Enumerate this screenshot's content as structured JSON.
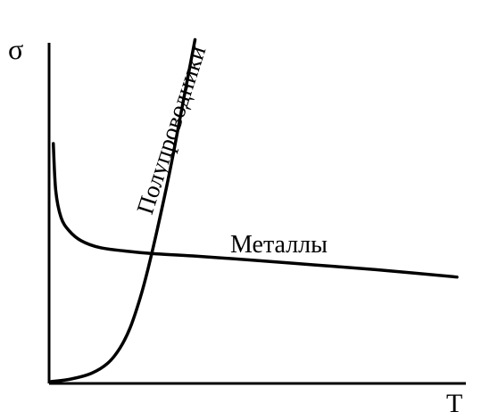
{
  "chart_data": {
    "type": "line",
    "title": "",
    "xlabel": "T",
    "ylabel": "σ",
    "xlim": [
      0,
      100
    ],
    "ylim": [
      0,
      100
    ],
    "grid": false,
    "legend": "none",
    "series": [
      {
        "name": "Металлы",
        "x": [
          0.6,
          1.2,
          2.5,
          4.5,
          7.5,
          12,
          18,
          25,
          35,
          50,
          65,
          80,
          100
        ],
        "y": [
          71,
          57,
          49,
          45,
          42,
          40,
          39,
          38.2,
          37.5,
          36.2,
          34.8,
          33.4,
          31.2
        ]
      },
      {
        "name": "Полупроводники",
        "x": [
          0,
          5,
          10,
          14,
          17,
          19.5,
          22,
          24,
          26.5,
          29.5,
          32.5,
          35.5
        ],
        "y": [
          0,
          0.8,
          2.5,
          5.5,
          10,
          16,
          25,
          34,
          47,
          64,
          83,
          102
        ]
      }
    ],
    "colors": {
      "line": "#000000",
      "background": "#ffffff"
    }
  }
}
